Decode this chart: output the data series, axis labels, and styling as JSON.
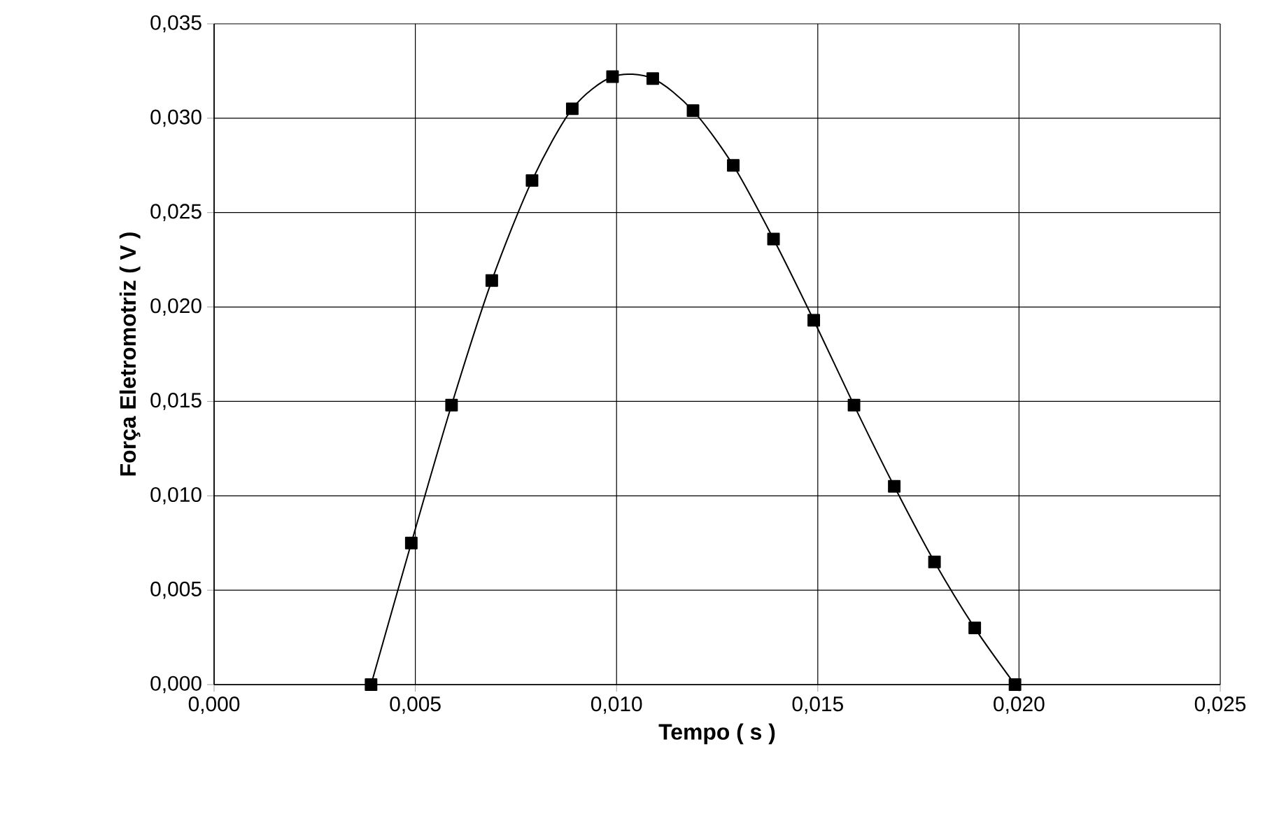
{
  "chart_data": {
    "type": "line",
    "xlabel": "Tempo ( s )",
    "ylabel": "Força Eletromotriz ( V )",
    "x": [
      0.0039,
      0.0049,
      0.0059,
      0.0069,
      0.0079,
      0.0089,
      0.0099,
      0.0109,
      0.0119,
      0.0129,
      0.0139,
      0.0149,
      0.0159,
      0.0169,
      0.0179,
      0.0189,
      0.0199
    ],
    "series": [
      {
        "color": "#000000",
        "values": [
          0.0,
          0.0075,
          0.0148,
          0.0214,
          0.0267,
          0.0305,
          0.0322,
          0.0321,
          0.0304,
          0.0275,
          0.0236,
          0.0193,
          0.0148,
          0.0105,
          0.0065,
          0.003,
          0.0
        ]
      }
    ],
    "xlim": [
      0,
      0.025
    ],
    "ylim": [
      0,
      0.035
    ],
    "xticks": [
      {
        "value": 0,
        "label": "0,000"
      },
      {
        "value": 0.005,
        "label": "0,005"
      },
      {
        "value": 0.01,
        "label": "0,010"
      },
      {
        "value": 0.015,
        "label": "0,015"
      },
      {
        "value": 0.02,
        "label": "0,020"
      },
      {
        "value": 0.025,
        "label": "0,025"
      }
    ],
    "yticks": [
      {
        "value": 0,
        "label": "0,000"
      },
      {
        "value": 0.005,
        "label": "0,005"
      },
      {
        "value": 0.01,
        "label": "0,010"
      },
      {
        "value": 0.015,
        "label": "0,015"
      },
      {
        "value": 0.02,
        "label": "0,020"
      },
      {
        "value": 0.025,
        "label": "0,025"
      },
      {
        "value": 0.03,
        "label": "0,030"
      },
      {
        "value": 0.035,
        "label": "0,035"
      }
    ],
    "grid": true,
    "marker": "square",
    "line_style": "solid"
  }
}
